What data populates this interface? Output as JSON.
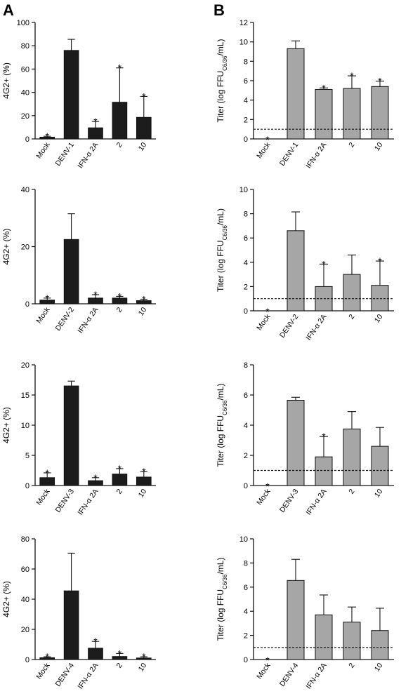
{
  "panels": [
    {
      "letter": "A"
    },
    {
      "letter": "B"
    }
  ],
  "chart_data": [
    {
      "type": "bar",
      "column": "A",
      "ylabel_main": "4G2+ (%)",
      "ylabel_sub": "",
      "ylim": [
        0,
        100
      ],
      "yticks": [
        0,
        20,
        40,
        60,
        80,
        100
      ],
      "bar_color": "#1c1c1c",
      "categories": [
        "Mock",
        "DENV-1",
        "IFN-α 2A",
        "2",
        "10"
      ],
      "values": [
        1.5,
        76,
        9.5,
        31.5,
        18.5
      ],
      "errors": [
        0.8,
        9.5,
        5.5,
        29.5,
        18
      ],
      "significant": [
        true,
        false,
        true,
        true,
        true
      ],
      "threshold": null
    },
    {
      "type": "bar",
      "column": "B",
      "ylabel_main": "Titer (log FFU",
      "ylabel_sub": "C6/36",
      "ylabel_end": "/mL)",
      "ylim": [
        0,
        12
      ],
      "yticks": [
        0,
        2,
        4,
        6,
        8,
        10,
        12
      ],
      "bar_color": "#a6a6a6",
      "categories": [
        "Mock",
        "DENV-1",
        "IFN-α 2A",
        "2",
        "10"
      ],
      "values": [
        0,
        9.3,
        5.1,
        5.2,
        5.4
      ],
      "errors": [
        0,
        0.8,
        0.15,
        1.3,
        0.55
      ],
      "significant": [
        true,
        false,
        true,
        true,
        true
      ],
      "threshold": 1
    },
    {
      "type": "bar",
      "column": "A",
      "ylabel_main": "4G2+ (%)",
      "ylabel_sub": "",
      "ylim": [
        0,
        40
      ],
      "yticks": [
        0,
        20,
        40
      ],
      "bar_color": "#1c1c1c",
      "categories": [
        "Mock",
        "DENV-2",
        "IFN-α 2A",
        "2",
        "10"
      ],
      "values": [
        1.3,
        22.5,
        2.0,
        2.0,
        1.1
      ],
      "errors": [
        0.7,
        9,
        1.2,
        0.6,
        0.5
      ],
      "significant": [
        true,
        false,
        true,
        true,
        true
      ],
      "threshold": null
    },
    {
      "type": "bar",
      "column": "B",
      "ylabel_main": "Titer (log FFU",
      "ylabel_sub": "C6/36",
      "ylabel_end": "/mL)",
      "ylim": [
        0,
        10
      ],
      "yticks": [
        0,
        2,
        4,
        6,
        8,
        10
      ],
      "bar_color": "#a6a6a6",
      "categories": [
        "Mock",
        "DENV-2",
        "IFN-α 2A",
        "2",
        "10"
      ],
      "values": [
        0,
        6.6,
        2.0,
        3.0,
        2.1
      ],
      "errors": [
        0,
        1.55,
        1.85,
        1.6,
        2.0
      ],
      "significant": [
        true,
        false,
        true,
        false,
        true
      ],
      "threshold": 1
    },
    {
      "type": "bar",
      "column": "A",
      "ylabel_main": "4G2+ (%)",
      "ylabel_sub": "",
      "ylim": [
        0,
        20
      ],
      "yticks": [
        0,
        5,
        10,
        15,
        20
      ],
      "bar_color": "#1c1c1c",
      "categories": [
        "Mock",
        "DENV-3",
        "IFN-α 2A",
        "2",
        "10"
      ],
      "values": [
        1.3,
        16.5,
        0.8,
        1.9,
        1.4
      ],
      "errors": [
        0.8,
        0.8,
        0.5,
        0.9,
        0.9
      ],
      "significant": [
        true,
        false,
        true,
        true,
        true
      ],
      "threshold": null
    },
    {
      "type": "bar",
      "column": "B",
      "ylabel_main": "Titer (log FFU",
      "ylabel_sub": "C6/36",
      "ylabel_end": "/mL)",
      "ylim": [
        0,
        8
      ],
      "yticks": [
        0,
        2,
        4,
        6,
        8
      ],
      "bar_color": "#a6a6a6",
      "categories": [
        "Mock",
        "DENV-3",
        "IFN-α 2A",
        "2",
        "10"
      ],
      "values": [
        0,
        5.65,
        1.9,
        3.75,
        2.6
      ],
      "errors": [
        0,
        0.2,
        1.35,
        1.15,
        1.25
      ],
      "significant": [
        true,
        false,
        true,
        false,
        false
      ],
      "threshold": 1
    },
    {
      "type": "bar",
      "column": "A",
      "ylabel_main": "4G2+ (%)",
      "ylabel_sub": "",
      "ylim": [
        0,
        80
      ],
      "yticks": [
        0,
        20,
        40,
        60,
        80
      ],
      "bar_color": "#1c1c1c",
      "categories": [
        "Mock",
        "DENV-4",
        "IFN-α 2A",
        "2",
        "10"
      ],
      "values": [
        1.2,
        45.5,
        7.5,
        2.0,
        1.0
      ],
      "errors": [
        0.6,
        25,
        4.5,
        2.0,
        0.8
      ],
      "significant": [
        true,
        false,
        true,
        true,
        true
      ],
      "threshold": null
    },
    {
      "type": "bar",
      "column": "B",
      "ylabel_main": "Titer (log FFU",
      "ylabel_sub": "C6/36",
      "ylabel_end": "/mL)",
      "ylim": [
        0,
        10
      ],
      "yticks": [
        0,
        2,
        4,
        6,
        8,
        10
      ],
      "bar_color": "#a6a6a6",
      "categories": [
        "Mock",
        "DENV-4",
        "IFN-α 2A",
        "2",
        "10"
      ],
      "values": [
        0,
        6.55,
        3.7,
        3.1,
        2.4
      ],
      "errors": [
        0,
        1.75,
        1.65,
        1.25,
        1.85
      ],
      "significant": [
        true,
        false,
        false,
        false,
        false
      ],
      "threshold": 1
    }
  ]
}
